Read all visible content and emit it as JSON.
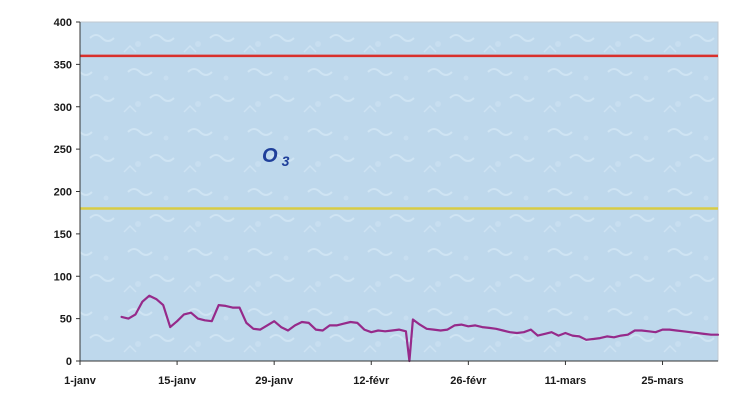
{
  "chart_data": {
    "type": "line",
    "title": "",
    "xlabel": "",
    "ylabel": "",
    "annotation": {
      "main": "O",
      "sub": "3"
    },
    "ylim": [
      0,
      400
    ],
    "yticks": [
      0,
      50,
      100,
      150,
      200,
      250,
      300,
      350,
      400
    ],
    "x_tick_labels": [
      "1-janv",
      "15-janv",
      "29-janv",
      "12-févr",
      "26-févr",
      "11-mars",
      "25-mars"
    ],
    "x_tick_days": [
      0,
      14,
      28,
      42,
      56,
      70,
      84
    ],
    "xlim_days": [
      0,
      92
    ],
    "grid": false,
    "reference_lines": [
      {
        "value": 360,
        "color": "#d9302c"
      },
      {
        "value": 180,
        "color": "#d8cc45"
      }
    ],
    "series": [
      {
        "color": "#962a8a",
        "x_days": [
          6,
          7,
          8,
          9,
          10,
          11,
          12,
          13,
          14,
          15,
          16,
          17,
          18,
          19,
          20,
          21,
          22,
          23,
          24,
          25,
          26,
          27,
          28,
          29,
          30,
          31,
          32,
          33,
          34,
          35,
          36,
          37,
          38,
          39,
          40,
          41,
          42,
          43,
          44,
          45,
          46,
          47,
          47.5,
          48,
          49,
          50,
          51,
          52,
          53,
          54,
          55,
          56,
          57,
          58,
          59,
          60,
          61,
          62,
          63,
          64,
          65,
          66,
          67,
          68,
          69,
          70,
          71,
          72,
          73,
          74,
          75,
          76,
          77,
          78,
          79,
          80,
          81,
          82,
          83,
          84,
          85,
          86,
          87,
          88,
          89,
          90,
          91,
          92
        ],
        "values": [
          52,
          50,
          55,
          70,
          77,
          73,
          66,
          40,
          47,
          55,
          57,
          50,
          48,
          47,
          66,
          65,
          63,
          63,
          45,
          38,
          37,
          42,
          47,
          40,
          36,
          42,
          46,
          45,
          37,
          36,
          42,
          42,
          44,
          46,
          45,
          37,
          34,
          36,
          35,
          36,
          37,
          35,
          0,
          49,
          43,
          38,
          37,
          36,
          37,
          42,
          43,
          41,
          42,
          40,
          39,
          38,
          36,
          34,
          33,
          34,
          37,
          30,
          32,
          34,
          30,
          33,
          30,
          29,
          25,
          26,
          27,
          29,
          28,
          30,
          31,
          36,
          36,
          35,
          34,
          37,
          37,
          36,
          35,
          34,
          33,
          32,
          31,
          31
        ]
      }
    ]
  }
}
